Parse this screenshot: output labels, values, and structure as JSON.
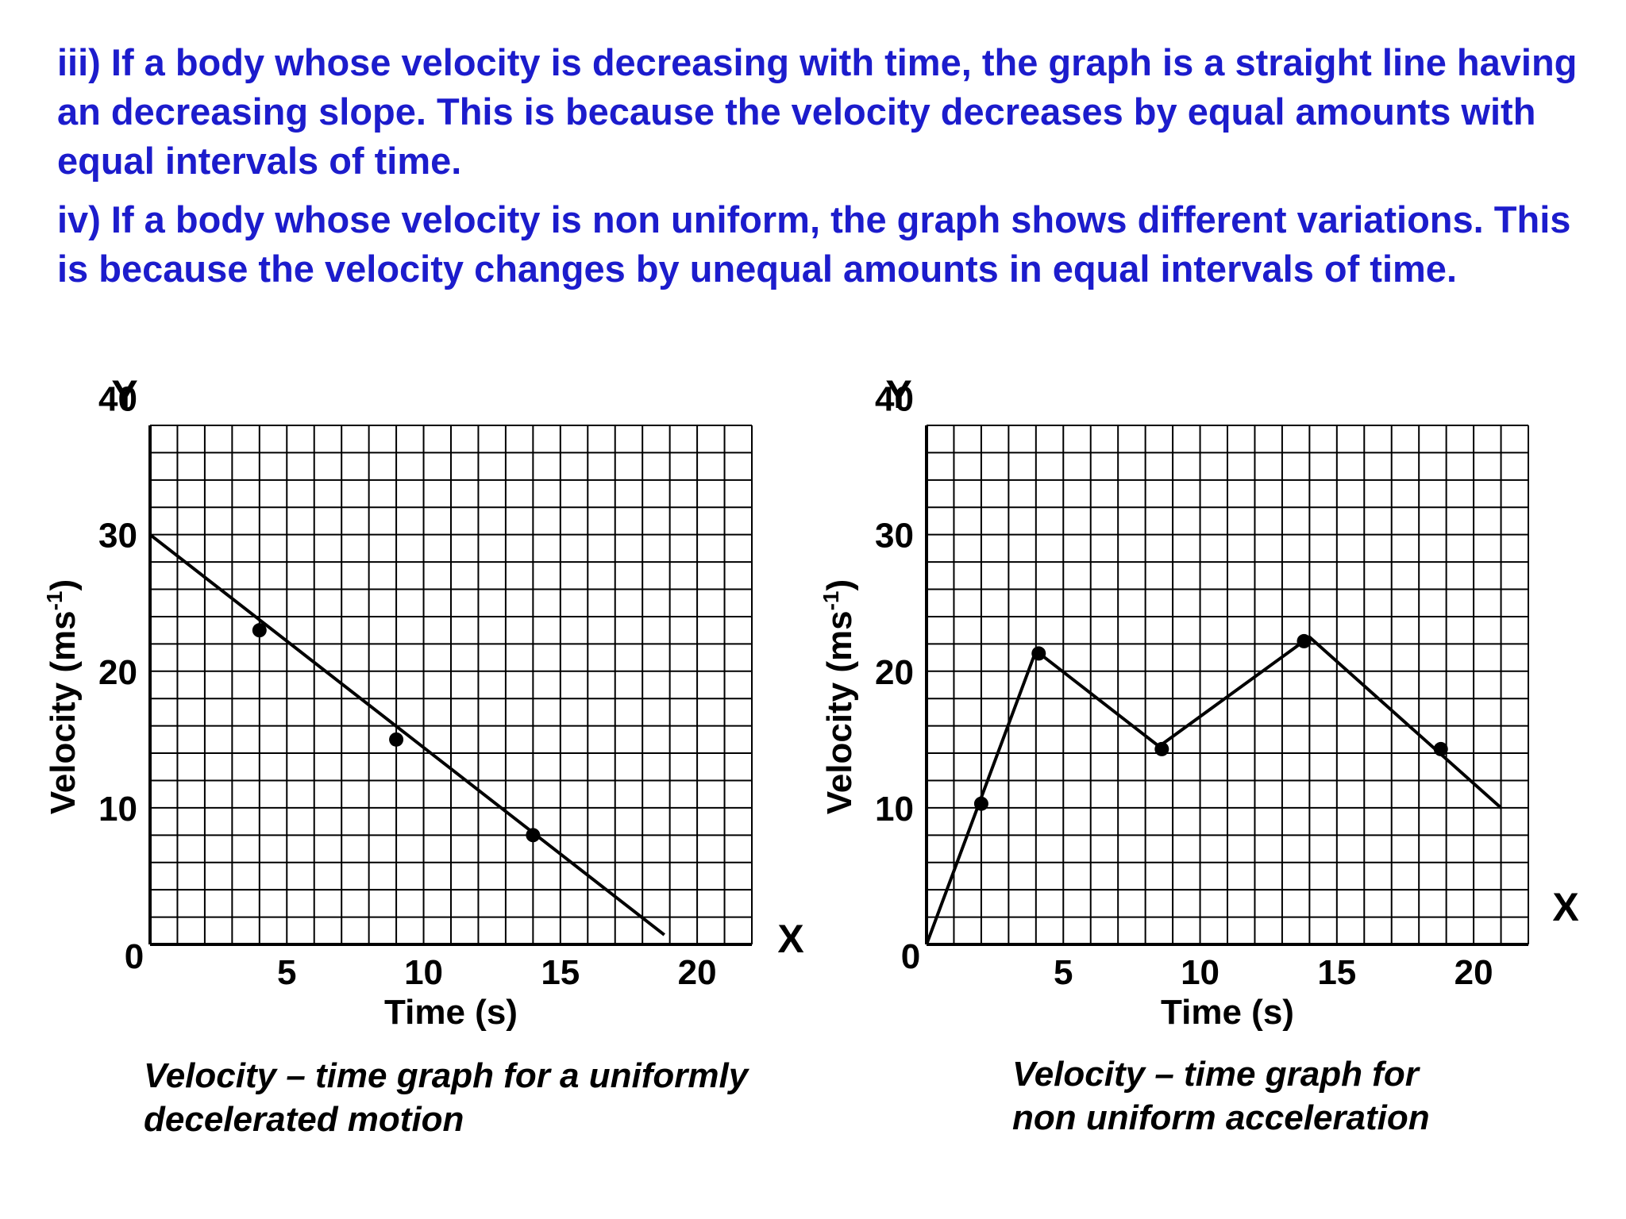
{
  "text": {
    "para_iii": "iii) If a body whose velocity is decreasing with time, the graph is a straight line having an decreasing slope. This is because the velocity decreases by equal amounts with equal intervals of time.",
    "para_iv": "iv) If a body whose velocity is non uniform, the graph shows different variations. This is because the velocity changes by unequal amounts in equal intervals of time."
  },
  "colors": {
    "text": "#1c1ccc",
    "grid": "#000000",
    "line": "#000000"
  },
  "chart_data": [
    {
      "type": "line",
      "title": "",
      "caption_lines": [
        "Velocity – time graph for a uniformly",
        "decelerated motion"
      ],
      "xlabel": "Time (s)",
      "ylabel": "Velocity (ms",
      "ylabel_sup": "-1",
      "ylabel_close": ")",
      "x_axis_letter": "X",
      "y_axis_letter": "Y",
      "xlim": [
        0,
        22
      ],
      "ylim": [
        0,
        38
      ],
      "x_ticks": [
        0,
        5,
        10,
        15,
        20
      ],
      "y_ticks": [
        10,
        20,
        30,
        40
      ],
      "origin_label": "0",
      "grid": true,
      "series": [
        {
          "name": "velocity",
          "x": [
            0,
            18.8
          ],
          "y": [
            30,
            0.7
          ]
        }
      ],
      "points": [
        {
          "x": 4,
          "y": 23
        },
        {
          "x": 9,
          "y": 15
        },
        {
          "x": 14,
          "y": 8
        }
      ]
    },
    {
      "type": "line",
      "title": "",
      "caption_lines": [
        "Velocity – time graph for",
        "non uniform acceleration"
      ],
      "xlabel": "Time (s)",
      "ylabel": "Velocity (ms",
      "ylabel_sup": "-1",
      "ylabel_close": ")",
      "x_axis_letter": "X",
      "y_axis_letter": "Y",
      "xlim": [
        0,
        22
      ],
      "ylim": [
        0,
        38
      ],
      "x_ticks": [
        0,
        5,
        10,
        15,
        20
      ],
      "y_ticks": [
        10,
        20,
        30,
        40
      ],
      "origin_label": "0",
      "grid": true,
      "series": [
        {
          "name": "velocity",
          "x": [
            0,
            4,
            8.5,
            14,
            21
          ],
          "y": [
            0,
            21.5,
            14.5,
            22.5,
            10
          ]
        }
      ],
      "points": [
        {
          "x": 2,
          "y": 10.3
        },
        {
          "x": 4.1,
          "y": 21.3
        },
        {
          "x": 8.6,
          "y": 14.3
        },
        {
          "x": 13.8,
          "y": 22.2
        },
        {
          "x": 18.8,
          "y": 14.3
        }
      ]
    }
  ]
}
